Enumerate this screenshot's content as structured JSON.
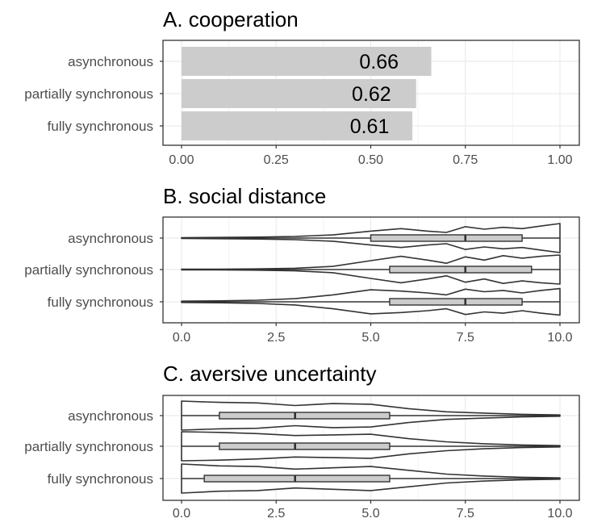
{
  "chart_data": [
    {
      "type": "bar",
      "orientation": "horizontal",
      "title": "A. cooperation",
      "categories": [
        "asynchronous",
        "partially synchronous",
        "fully synchronous"
      ],
      "values": [
        0.66,
        0.62,
        0.61
      ],
      "value_labels": [
        "0.66",
        "0.62",
        "0.61"
      ],
      "xlim": [
        0,
        1
      ],
      "xticks": [
        0,
        0.25,
        0.5,
        0.75,
        1
      ],
      "xtick_labels": [
        "0.00",
        "0.25",
        "0.50",
        "0.75",
        "1.00"
      ],
      "xlabel": "",
      "ylabel": "",
      "grid": true,
      "colors": {
        "bar": "#cccccc"
      }
    },
    {
      "type": "violin",
      "title": "B. social distance",
      "categories": [
        "asynchronous",
        "partially synchronous",
        "fully synchronous"
      ],
      "xlim": [
        0,
        10
      ],
      "xticks": [
        0,
        2.5,
        5,
        7.5,
        10
      ],
      "xtick_labels": [
        "0.0",
        "2.5",
        "5.0",
        "7.5",
        "10.0"
      ],
      "xlabel": "",
      "ylabel": "",
      "grid": true,
      "colors": {
        "box": "#cccccc",
        "outline": "#333333"
      },
      "series": [
        {
          "category": "asynchronous",
          "box": {
            "min": 0,
            "q1": 5.0,
            "median": 7.5,
            "q3": 9.0,
            "max": 10
          },
          "density": [
            [
              0,
              0.01
            ],
            [
              1,
              0.02
            ],
            [
              2,
              0.03
            ],
            [
              3,
              0.05
            ],
            [
              4,
              0.1
            ],
            [
              5,
              0.22
            ],
            [
              5.8,
              0.3
            ],
            [
              6.5,
              0.22
            ],
            [
              7,
              0.18
            ],
            [
              7.5,
              0.36
            ],
            [
              8,
              0.28
            ],
            [
              8.5,
              0.34
            ],
            [
              9,
              0.3
            ],
            [
              9.5,
              0.38
            ],
            [
              10,
              0.46
            ]
          ]
        },
        {
          "category": "partially synchronous",
          "box": {
            "min": 0,
            "q1": 5.5,
            "median": 7.5,
            "q3": 9.25,
            "max": 10
          },
          "density": [
            [
              0,
              0.01
            ],
            [
              1,
              0.01
            ],
            [
              2,
              0.02
            ],
            [
              3,
              0.04
            ],
            [
              4,
              0.1
            ],
            [
              5,
              0.28
            ],
            [
              5.8,
              0.42
            ],
            [
              6.5,
              0.3
            ],
            [
              7,
              0.2
            ],
            [
              7.5,
              0.4
            ],
            [
              8,
              0.3
            ],
            [
              8.5,
              0.44
            ],
            [
              9,
              0.36
            ],
            [
              9.5,
              0.42
            ],
            [
              10,
              0.46
            ]
          ]
        },
        {
          "category": "fully synchronous",
          "box": {
            "min": 0,
            "q1": 5.5,
            "median": 7.5,
            "q3": 9.0,
            "max": 10
          },
          "density": [
            [
              0,
              0.02
            ],
            [
              1,
              0.03
            ],
            [
              2,
              0.05
            ],
            [
              3,
              0.1
            ],
            [
              4,
              0.22
            ],
            [
              5,
              0.38
            ],
            [
              5.8,
              0.34
            ],
            [
              6.5,
              0.28
            ],
            [
              7,
              0.22
            ],
            [
              7.5,
              0.4
            ],
            [
              8,
              0.32
            ],
            [
              8.5,
              0.36
            ],
            [
              9,
              0.28
            ],
            [
              9.5,
              0.36
            ],
            [
              10,
              0.42
            ]
          ]
        }
      ]
    },
    {
      "type": "violin",
      "title": "C. aversive uncertainty",
      "categories": [
        "asynchronous",
        "partially synchronous",
        "fully synchronous"
      ],
      "xlim": [
        0,
        10
      ],
      "xticks": [
        0,
        2.5,
        5,
        7.5,
        10
      ],
      "xtick_labels": [
        "0.0",
        "2.5",
        "5.0",
        "7.5",
        "10.0"
      ],
      "xlabel": "",
      "ylabel": "",
      "grid": true,
      "colors": {
        "box": "#cccccc",
        "outline": "#333333"
      },
      "series": [
        {
          "category": "asynchronous",
          "box": {
            "min": 0,
            "q1": 1.0,
            "median": 3.0,
            "q3": 5.5,
            "max": 10
          },
          "density": [
            [
              0,
              0.46
            ],
            [
              1,
              0.42
            ],
            [
              2,
              0.4
            ],
            [
              3,
              0.32
            ],
            [
              4,
              0.38
            ],
            [
              5,
              0.36
            ],
            [
              6,
              0.22
            ],
            [
              7,
              0.12
            ],
            [
              8,
              0.08
            ],
            [
              9,
              0.04
            ],
            [
              10,
              0.02
            ]
          ]
        },
        {
          "category": "partially synchronous",
          "box": {
            "min": 0,
            "q1": 1.0,
            "median": 3.0,
            "q3": 5.5,
            "max": 10
          },
          "density": [
            [
              0,
              0.46
            ],
            [
              1,
              0.44
            ],
            [
              2,
              0.4
            ],
            [
              3,
              0.34
            ],
            [
              4,
              0.36
            ],
            [
              5,
              0.38
            ],
            [
              6,
              0.24
            ],
            [
              7,
              0.14
            ],
            [
              8,
              0.08
            ],
            [
              9,
              0.04
            ],
            [
              10,
              0.02
            ]
          ]
        },
        {
          "category": "fully synchronous",
          "box": {
            "min": 0,
            "q1": 0.6,
            "median": 3.0,
            "q3": 5.5,
            "max": 10
          },
          "density": [
            [
              0,
              0.46
            ],
            [
              1,
              0.4
            ],
            [
              2,
              0.38
            ],
            [
              3,
              0.3
            ],
            [
              4,
              0.34
            ],
            [
              5,
              0.38
            ],
            [
              6,
              0.26
            ],
            [
              7,
              0.14
            ],
            [
              8,
              0.08
            ],
            [
              9,
              0.04
            ],
            [
              10,
              0.02
            ]
          ]
        }
      ]
    }
  ]
}
